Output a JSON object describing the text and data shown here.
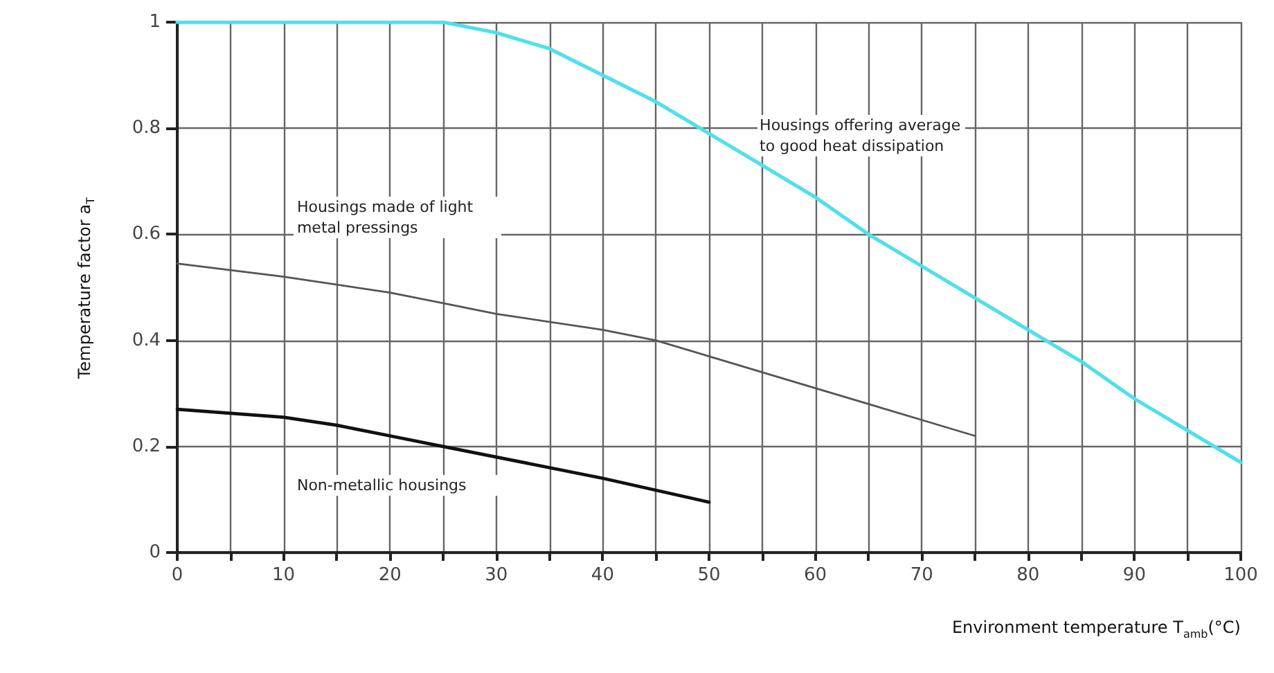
{
  "chart_data": {
    "type": "line",
    "xlabel": "Environment temperature T$_{amb}$(°C)",
    "ylabel": "Temperature factor a$_{T}$",
    "xlim": [
      0,
      100
    ],
    "ylim": [
      0,
      1
    ],
    "xticks": [
      0,
      {
        "value": 5,
        "label": null
      },
      10,
      {
        "value": 15,
        "label": null
      },
      20,
      {
        "value": 25,
        "label": null
      },
      30,
      {
        "value": 35,
        "label": null
      },
      40,
      {
        "value": 45,
        "label": null
      },
      50,
      {
        "value": 55,
        "label": null
      },
      60,
      {
        "value": 65,
        "label": null
      },
      70,
      {
        "value": 75,
        "label": null
      },
      80,
      {
        "value": 85,
        "label": null
      },
      90,
      {
        "value": 95,
        "label": null
      },
      100
    ],
    "yticks": [
      0,
      0.2,
      0.4,
      0.6,
      0.8,
      1
    ],
    "grid": true,
    "marker": "none",
    "line_style": "solid",
    "series": [
      {
        "name": "Housings offering average to good heat dissipation",
        "color": "#4fe0ea",
        "x": [
          0,
          25,
          30,
          35,
          40,
          45,
          50,
          55,
          60,
          65,
          70,
          75,
          80,
          85,
          90,
          95,
          100
        ],
        "values": [
          1,
          1,
          0.98,
          0.95,
          0.9,
          0.85,
          0.79,
          0.73,
          0.67,
          0.6,
          0.54,
          0.48,
          0.42,
          0.36,
          0.29,
          0.23,
          0.17
        ]
      },
      {
        "name": "Housings made of light metal pressings",
        "color": "#555555",
        "x": [
          0,
          10,
          20,
          25,
          30,
          40,
          45,
          50,
          60,
          70,
          75
        ],
        "values": [
          0.545,
          0.52,
          0.49,
          0.47,
          0.45,
          0.42,
          0.4,
          0.37,
          0.31,
          0.25,
          0.22
        ]
      },
      {
        "name": "Non-metallic housings",
        "color": "#111111",
        "x": [
          0,
          10,
          15,
          20,
          25,
          30,
          40,
          50
        ],
        "values": [
          0.27,
          0.255,
          0.24,
          0.22,
          0.2,
          0.18,
          0.14,
          0.095
        ]
      }
    ]
  }
}
